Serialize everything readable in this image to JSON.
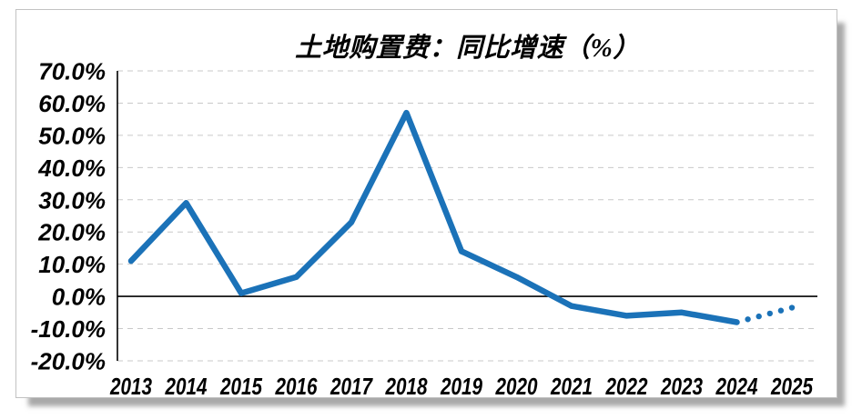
{
  "page": {
    "background": "#ffffff"
  },
  "card": {
    "background": "#ffffff",
    "border_color": "#c2c2c2",
    "shadow_color": "#919191"
  },
  "chart_data": {
    "type": "line",
    "title": "土地购置费：同比增速（%）",
    "categories": [
      "2013",
      "2014",
      "2015",
      "2016",
      "2017",
      "2018",
      "2019",
      "2020",
      "2021",
      "2022",
      "2023",
      "2024",
      "2025"
    ],
    "series": [
      {
        "name": "土地购置费同比增速",
        "values": [
          11,
          29,
          1,
          6,
          23,
          57,
          14,
          6,
          -3,
          -6,
          -5,
          -8,
          -3.5
        ],
        "color": "#1b72b8",
        "solid_segment": [
          0,
          11
        ],
        "dotted_segment": [
          11,
          12
        ],
        "dotted_point_count": 5
      }
    ],
    "xlabel": "",
    "ylabel": "",
    "ylim": [
      -20,
      70
    ],
    "yticks": [
      {
        "value": 70,
        "label": "70.0%"
      },
      {
        "value": 60,
        "label": "60.0%"
      },
      {
        "value": 50,
        "label": "50.0%"
      },
      {
        "value": 40,
        "label": "40.0%"
      },
      {
        "value": 30,
        "label": "30.0%"
      },
      {
        "value": 20,
        "label": "20.0%"
      },
      {
        "value": 10,
        "label": "10.0%"
      },
      {
        "value": 0,
        "label": "0.0%"
      },
      {
        "value": -10,
        "label": "-10.0%"
      },
      {
        "value": -20,
        "label": "-20.0%"
      }
    ],
    "grid": {
      "horizontal": "dashed",
      "color": "#c9c9c9"
    },
    "zero_line_color": "#000000",
    "axis_color": "#000000",
    "legend": "none"
  }
}
